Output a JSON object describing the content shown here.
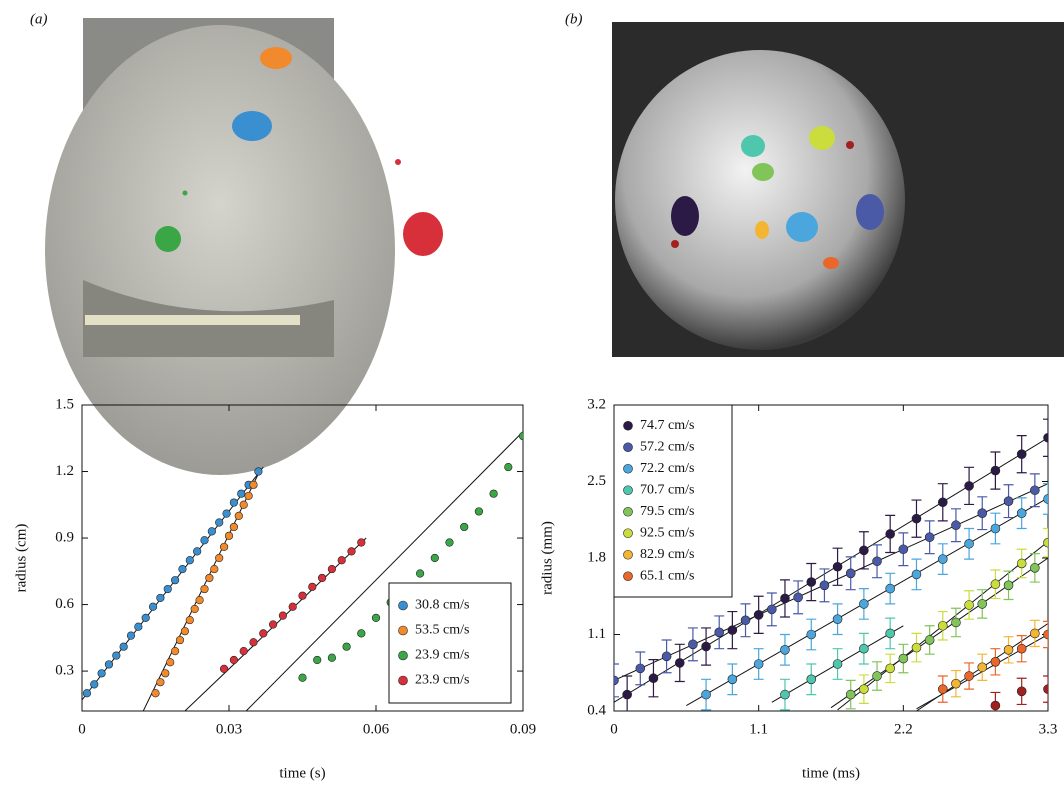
{
  "panel_labels": [
    "(a)",
    "(b)"
  ],
  "chart_data": [
    {
      "type": "scatter",
      "xlabel": "time (s)",
      "ylabel": "radius (cm)",
      "xlim": [
        0,
        0.09
      ],
      "ylim": [
        0.12,
        1.5
      ],
      "xticks": [
        0,
        0.03,
        0.06,
        0.09
      ],
      "yticks": [
        0.3,
        0.6,
        0.9,
        1.2,
        1.5
      ],
      "legend": "lower right",
      "series": [
        {
          "name": "30.8 cm/s",
          "color": "#3a8fd0",
          "x": [
            0.001,
            0.0025,
            0.004,
            0.0055,
            0.007,
            0.0085,
            0.01,
            0.0115,
            0.013,
            0.0145,
            0.016,
            0.0175,
            0.019,
            0.0205,
            0.022,
            0.0235,
            0.025,
            0.0265,
            0.028,
            0.0295,
            0.031,
            0.0325,
            0.034,
            0.036
          ],
          "values": [
            0.2,
            0.24,
            0.29,
            0.33,
            0.37,
            0.41,
            0.46,
            0.5,
            0.54,
            0.59,
            0.63,
            0.67,
            0.71,
            0.76,
            0.8,
            0.84,
            0.89,
            0.93,
            0.97,
            1.01,
            1.06,
            1.1,
            1.14,
            1.2
          ],
          "fit": {
            "x": [
              0,
              0.037
            ],
            "y": [
              0.17,
              1.22
            ]
          }
        },
        {
          "name": "53.5 cm/s",
          "color": "#f08a2c",
          "x": [
            0.015,
            0.016,
            0.017,
            0.018,
            0.019,
            0.02,
            0.021,
            0.022,
            0.023,
            0.024,
            0.025,
            0.026,
            0.027,
            0.028,
            0.029,
            0.03,
            0.031,
            0.032,
            0.033,
            0.034,
            0.035
          ],
          "values": [
            0.2,
            0.25,
            0.29,
            0.34,
            0.39,
            0.44,
            0.48,
            0.53,
            0.58,
            0.62,
            0.67,
            0.72,
            0.76,
            0.81,
            0.86,
            0.91,
            0.95,
            1.0,
            1.05,
            1.09,
            1.14
          ],
          "fit": {
            "x": [
              0.0125,
              0.036
            ],
            "y": [
              0.12,
              1.19
            ]
          }
        },
        {
          "name": "23.9 cm/s",
          "color": "#3aa645",
          "x": [
            0.045,
            0.048,
            0.051,
            0.054,
            0.057,
            0.06,
            0.063,
            0.066,
            0.069,
            0.072,
            0.075,
            0.078,
            0.081,
            0.084,
            0.087,
            0.09
          ],
          "values": [
            0.27,
            0.35,
            0.36,
            0.41,
            0.47,
            0.54,
            0.61,
            0.67,
            0.74,
            0.81,
            0.88,
            0.95,
            1.02,
            1.1,
            1.22,
            1.36
          ],
          "fit": {
            "x": [
              0.0335,
              0.09
            ],
            "y": [
              0.12,
              1.38
            ]
          }
        },
        {
          "name": "23.9 cm/s",
          "color": "#d8303a",
          "x": [
            0.029,
            0.031,
            0.033,
            0.035,
            0.037,
            0.039,
            0.041,
            0.043,
            0.045,
            0.047,
            0.049,
            0.051,
            0.053,
            0.055,
            0.057
          ],
          "values": [
            0.31,
            0.35,
            0.39,
            0.43,
            0.47,
            0.51,
            0.55,
            0.59,
            0.64,
            0.68,
            0.72,
            0.76,
            0.8,
            0.84,
            0.88
          ],
          "fit": {
            "x": [
              0.021,
              0.058
            ],
            "y": [
              0.12,
              0.9
            ]
          }
        }
      ]
    },
    {
      "type": "errorbar",
      "xlabel": "time (ms)",
      "ylabel": "radius (mm)",
      "xlim": [
        0,
        3.3
      ],
      "ylim": [
        0.4,
        3.2
      ],
      "xticks": [
        0,
        1.1,
        2.2,
        3.3
      ],
      "yticks": [
        0.4,
        1.1,
        1.8,
        2.5,
        3.2
      ],
      "legend": "upper left",
      "series": [
        {
          "name": "74.7 cm/s",
          "color": "#2b1a45",
          "error": 0.17,
          "x": [
            0.1,
            0.3,
            0.5,
            0.7,
            0.9,
            1.1,
            1.3,
            1.5,
            1.7,
            1.9,
            2.1,
            2.3,
            2.5,
            2.7,
            2.9,
            3.1,
            3.3
          ],
          "values": [
            0.55,
            0.7,
            0.84,
            0.99,
            1.14,
            1.28,
            1.43,
            1.58,
            1.72,
            1.87,
            2.02,
            2.16,
            2.31,
            2.46,
            2.6,
            2.75,
            2.9
          ],
          "fit": {
            "x": [
              0,
              3.3
            ],
            "y": [
              0.48,
              2.9
            ]
          }
        },
        {
          "name": "57.2 cm/s",
          "color": "#4a5aa6",
          "error": 0.15,
          "x": [
            0,
            0.2,
            0.4,
            0.6,
            0.8,
            1.0,
            1.2,
            1.4,
            1.6,
            1.8,
            2.0,
            2.2,
            2.4,
            2.6,
            2.8,
            3.0,
            3.2
          ],
          "values": [
            0.68,
            0.79,
            0.9,
            1.01,
            1.12,
            1.23,
            1.33,
            1.44,
            1.55,
            1.66,
            1.77,
            1.88,
            1.99,
            2.1,
            2.21,
            2.32,
            2.42
          ],
          "fit": {
            "x": [
              0,
              3.3
            ],
            "y": [
              0.68,
              2.48
            ]
          }
        },
        {
          "name": "72.2 cm/s",
          "color": "#4aa6dc",
          "error": 0.14,
          "x": [
            0.7,
            0.9,
            1.1,
            1.3,
            1.5,
            1.7,
            1.9,
            2.1,
            2.3,
            2.5,
            2.7,
            2.9,
            3.1,
            3.3
          ],
          "values": [
            0.55,
            0.69,
            0.83,
            0.96,
            1.1,
            1.24,
            1.38,
            1.52,
            1.65,
            1.79,
            1.93,
            2.07,
            2.21,
            2.34
          ],
          "fit": {
            "x": [
              0.55,
              3.3
            ],
            "y": [
              0.45,
              2.35
            ]
          }
        },
        {
          "name": "70.7 cm/s",
          "color": "#4ec7ad",
          "error": 0.14,
          "x": [
            1.3,
            1.5,
            1.7,
            1.9,
            2.1
          ],
          "values": [
            0.55,
            0.69,
            0.83,
            0.97,
            1.11
          ],
          "fit": {
            "x": [
              1.2,
              2.2
            ],
            "y": [
              0.48,
              1.18
            ]
          }
        },
        {
          "name": "79.5 cm/s",
          "color": "#80c45a",
          "error": 0.13,
          "x": [
            1.8,
            2.0,
            2.2,
            2.4,
            2.6,
            2.8,
            3.0,
            3.2
          ],
          "values": [
            0.55,
            0.72,
            0.88,
            1.05,
            1.21,
            1.38,
            1.55,
            1.71
          ],
          "fit": {
            "x": [
              1.65,
              3.3
            ],
            "y": [
              0.43,
              1.8
            ]
          }
        },
        {
          "name": "92.5 cm/s",
          "color": "#cadd3c",
          "error": 0.13,
          "x": [
            1.9,
            2.1,
            2.3,
            2.5,
            2.7,
            2.9,
            3.1,
            3.3
          ],
          "values": [
            0.6,
            0.79,
            0.98,
            1.18,
            1.37,
            1.56,
            1.75,
            1.94
          ],
          "fit": {
            "x": [
              1.7,
              3.3
            ],
            "y": [
              0.41,
              1.95
            ]
          }
        },
        {
          "name": "82.9 cm/s",
          "color": "#f3b532",
          "error": 0.12,
          "x": [
            2.6,
            2.8,
            3.0,
            3.2
          ],
          "values": [
            0.65,
            0.8,
            0.96,
            1.11
          ],
          "fit": {
            "x": [
              2.3,
              3.3
            ],
            "y": [
              0.4,
              1.2
            ]
          }
        },
        {
          "name": "65.1 cm/s",
          "color": "#ea662b",
          "error": 0.12,
          "x": [
            2.5,
            2.7,
            2.9,
            3.1,
            3.3
          ],
          "values": [
            0.6,
            0.72,
            0.85,
            0.97,
            1.1
          ],
          "fit": {
            "x": [
              2.3,
              3.3
            ],
            "y": [
              0.42,
              1.1
            ]
          }
        },
        {
          "color": "#a3201f",
          "error": 0.12,
          "x": [
            2.9,
            3.1,
            3.3
          ],
          "values": [
            0.45,
            0.58,
            0.6
          ]
        }
      ]
    }
  ]
}
